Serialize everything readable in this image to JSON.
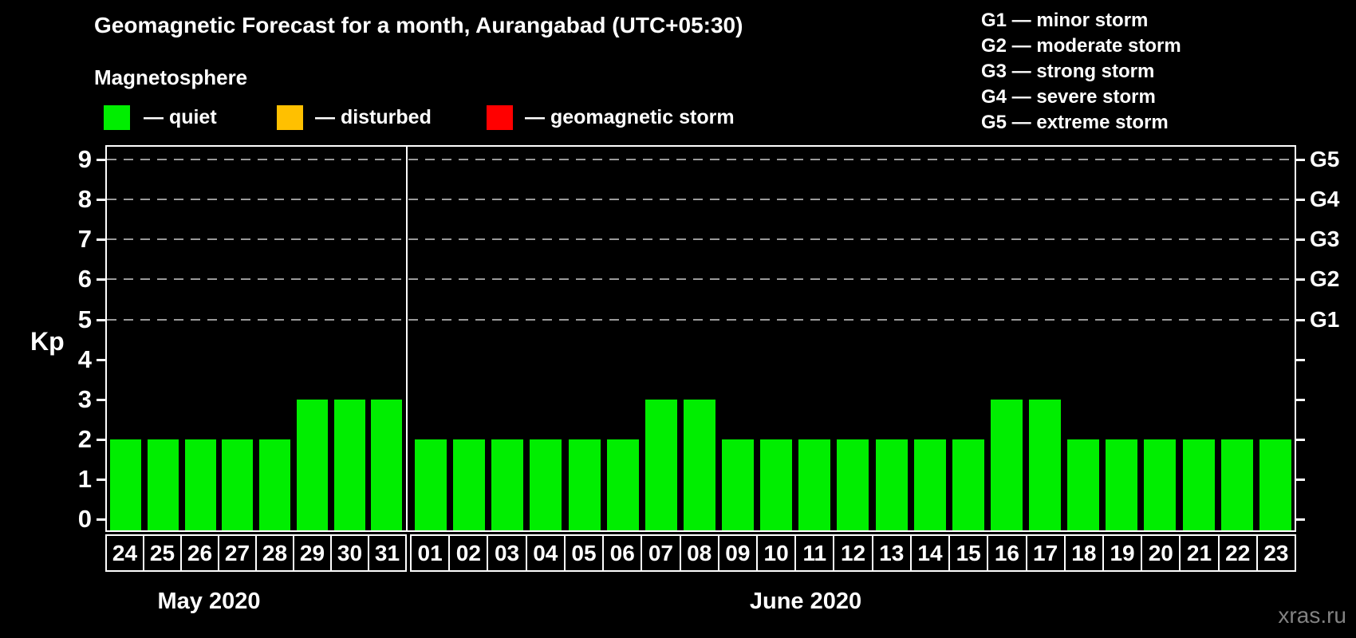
{
  "title": "Geomagnetic Forecast for a month, Aurangabad (UTC+05:30)",
  "subtitle": "Magnetosphere",
  "magnetosphere_legend": [
    {
      "name": "quiet",
      "label": "— quiet",
      "color": "#00ee00"
    },
    {
      "name": "disturbed",
      "label": "— disturbed",
      "color": "#ffc000"
    },
    {
      "name": "geomagnetic-storm",
      "label": "— geomagnetic storm",
      "color": "#ff0000"
    }
  ],
  "storm_scale_legend": [
    "G1 — minor storm",
    "G2 — moderate storm",
    "G3 — strong storm",
    "G4 — severe storm",
    "G5 — extreme storm"
  ],
  "watermark": "xras.ru",
  "chart_data": {
    "type": "bar",
    "title": "Geomagnetic Forecast for a month, Aurangabad (UTC+05:30)",
    "ylabel": "Kp",
    "ylim": [
      0,
      9
    ],
    "yticks": [
      0,
      1,
      2,
      3,
      4,
      5,
      6,
      7,
      8,
      9
    ],
    "gridlines_at_kp": [
      5,
      6,
      7,
      8,
      9
    ],
    "grid_style": "dashed",
    "right_axis": [
      {
        "label": "G1",
        "kp": 5
      },
      {
        "label": "G2",
        "kp": 6
      },
      {
        "label": "G3",
        "kp": 7
      },
      {
        "label": "G4",
        "kp": 8
      },
      {
        "label": "G5",
        "kp": 9
      }
    ],
    "bar_state": "quiet",
    "bar_color": "#00ee00",
    "legend_position": "top",
    "months": [
      {
        "label": "May 2020",
        "days": [
          "24",
          "25",
          "26",
          "27",
          "28",
          "29",
          "30",
          "31"
        ],
        "values": [
          2,
          2,
          2,
          2,
          2,
          3,
          3,
          3
        ]
      },
      {
        "label": "June 2020",
        "days": [
          "01",
          "02",
          "03",
          "04",
          "05",
          "06",
          "07",
          "08",
          "09",
          "10",
          "11",
          "12",
          "13",
          "14",
          "15",
          "16",
          "17",
          "18",
          "19",
          "20",
          "21",
          "22",
          "23"
        ],
        "values": [
          2,
          2,
          2,
          2,
          2,
          2,
          3,
          3,
          2,
          2,
          2,
          2,
          2,
          2,
          2,
          3,
          3,
          2,
          2,
          2,
          2,
          2,
          2
        ]
      }
    ]
  }
}
